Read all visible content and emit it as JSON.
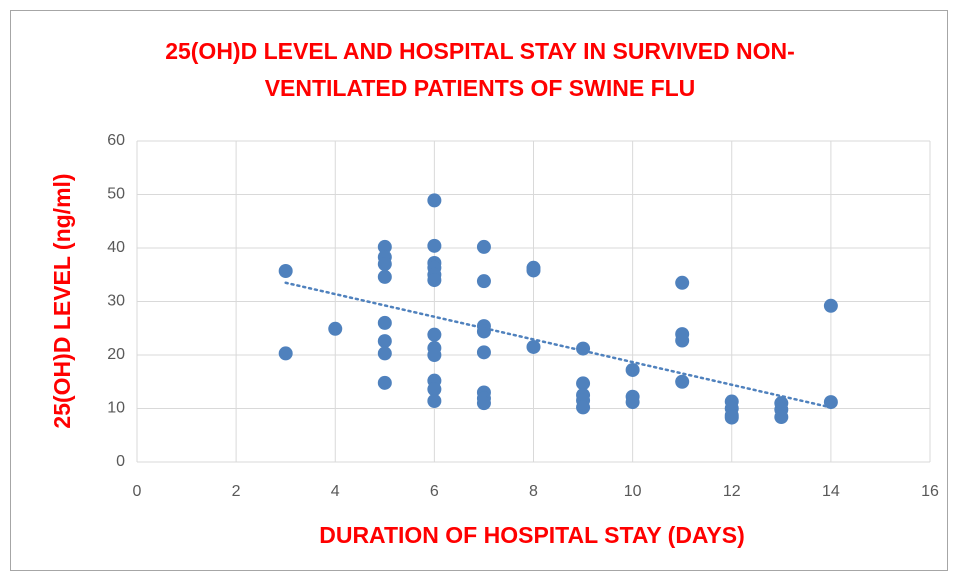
{
  "chart_data": {
    "type": "scatter",
    "title": [
      "25(OH)D LEVEL AND HOSPITAL STAY IN SURVIVED NON-",
      "VENTILATED PATIENTS OF SWINE FLU"
    ],
    "x_label": "DURATION OF HOSPITAL STAY (DAYS)",
    "y_label": "25(OH)D LEVEL (ng/ml)",
    "xlim": [
      0,
      16
    ],
    "xticks": [
      0,
      2,
      4,
      6,
      8,
      10,
      12,
      14,
      16
    ],
    "ylim": [
      0,
      60
    ],
    "yticks": [
      0,
      10,
      20,
      30,
      40,
      50,
      60
    ],
    "grid": true,
    "series": [
      {
        "color": "#4f81bd",
        "x": [
          3,
          3,
          4,
          5,
          5,
          5,
          5,
          5,
          5,
          5,
          5,
          6,
          6,
          6,
          6,
          6,
          6,
          6,
          6,
          6,
          6,
          6,
          6,
          7,
          7,
          7,
          7,
          7,
          7,
          7,
          7,
          8,
          8,
          8,
          9,
          9,
          9,
          9,
          9,
          10,
          10,
          10,
          11,
          11,
          11,
          11,
          12,
          12,
          12,
          12,
          13,
          13,
          13,
          14,
          14
        ],
        "values": [
          35.7,
          20.3,
          24.9,
          40.2,
          38.3,
          37,
          34.6,
          26,
          22.6,
          20.3,
          14.8,
          48.9,
          40.4,
          37.2,
          36.3,
          35,
          34,
          23.8,
          21.3,
          20,
          15.2,
          13.6,
          11.4,
          40.2,
          33.8,
          25.4,
          24.4,
          20.5,
          13,
          11.9,
          11,
          36.3,
          35.8,
          21.5,
          21.2,
          14.7,
          12.5,
          11.5,
          10.2,
          17.2,
          12.2,
          11.2,
          33.5,
          23.9,
          22.7,
          15,
          11.3,
          10,
          8.7,
          8.3,
          11,
          9.8,
          8.4,
          29.2,
          11.2
        ]
      }
    ],
    "trendline": {
      "color": "#4f81bd",
      "x": [
        3,
        14
      ],
      "values": [
        33.5,
        10.2
      ]
    }
  }
}
